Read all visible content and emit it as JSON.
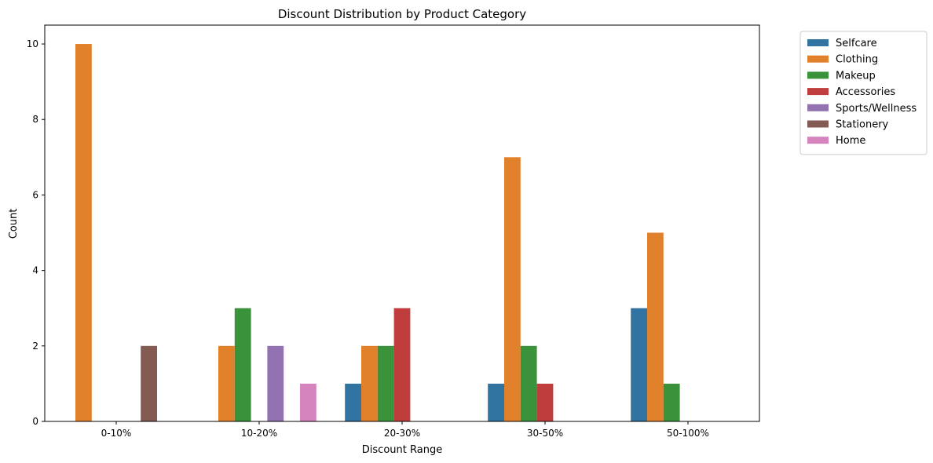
{
  "chart_data": {
    "type": "bar",
    "title": "Discount Distribution by Product Category",
    "xlabel": "Discount Range",
    "ylabel": "Count",
    "categories": [
      "0-10%",
      "10-20%",
      "20-30%",
      "30-50%",
      "50-100%"
    ],
    "ylim": [
      0,
      10.5
    ],
    "yticks": [
      0,
      2,
      4,
      6,
      8,
      10
    ],
    "grid": false,
    "legend_position": "outside-top-right",
    "series": [
      {
        "name": "Selfcare",
        "color": "#3274a1",
        "values": [
          0,
          0,
          1,
          1,
          3
        ]
      },
      {
        "name": "Clothing",
        "color": "#e1812c",
        "values": [
          10,
          2,
          2,
          7,
          5
        ]
      },
      {
        "name": "Makeup",
        "color": "#3a923a",
        "values": [
          0,
          3,
          2,
          2,
          1
        ]
      },
      {
        "name": "Accessories",
        "color": "#c03d3e",
        "values": [
          0,
          0,
          3,
          1,
          0
        ]
      },
      {
        "name": "Sports/Wellness",
        "color": "#9372b2",
        "values": [
          0,
          2,
          0,
          0,
          0
        ]
      },
      {
        "name": "Stationery",
        "color": "#845b53",
        "values": [
          2,
          0,
          0,
          0,
          0
        ]
      },
      {
        "name": "Home",
        "color": "#d684bd",
        "values": [
          0,
          1,
          0,
          0,
          0
        ]
      }
    ]
  }
}
